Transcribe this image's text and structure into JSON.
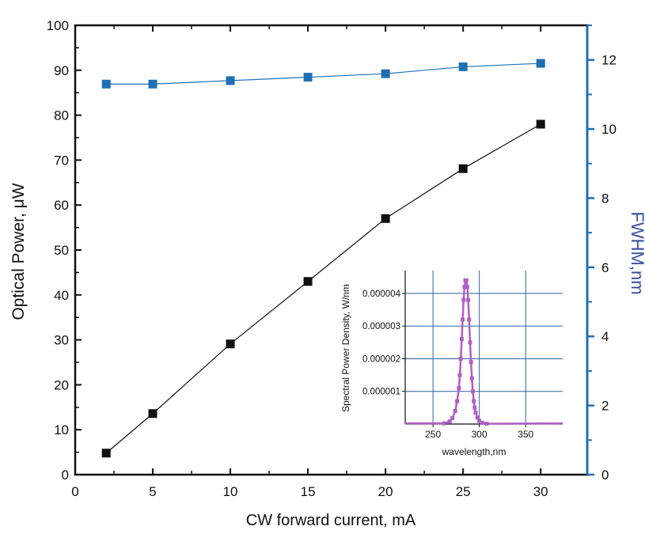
{
  "chart_data": [
    {
      "type": "line",
      "xlabel": "CW forward current, mA",
      "ylabel_left": "Optical Power, μW",
      "ylabel_right": "FWHM,nm",
      "xlim": [
        0,
        33
      ],
      "ylim_left": [
        0,
        100
      ],
      "ylim_right": [
        0,
        13
      ],
      "x_ticks": [
        "0",
        "5",
        "10",
        "15",
        "20",
        "25",
        "30"
      ],
      "y_left_ticks": [
        "0",
        "10",
        "20",
        "30",
        "40",
        "50",
        "60",
        "70",
        "80",
        "90",
        "100"
      ],
      "y_right_ticks": [
        "0",
        "2",
        "4",
        "6",
        "8",
        "10",
        "12"
      ],
      "colors": {
        "power": "#111111",
        "fwhm": "#1f6fb5",
        "right_axis": "#1f6fb5",
        "right_label": "#3a4fa0"
      },
      "series": [
        {
          "axis": "left",
          "x": [
            2,
            5,
            10,
            15,
            20,
            25,
            30
          ],
          "values": [
            4.8,
            13.6,
            29.1,
            43.0,
            57.0,
            68.1,
            78.0
          ]
        },
        {
          "axis": "right",
          "x": [
            2,
            5,
            10,
            15,
            20,
            25,
            30
          ],
          "values": [
            11.3,
            11.3,
            11.4,
            11.5,
            11.6,
            11.8,
            11.9
          ]
        }
      ]
    },
    {
      "type": "line",
      "inset": true,
      "xlabel": "wavelength,nm",
      "ylabel": "Spectral Power Density, W/nm",
      "xlim": [
        220,
        390
      ],
      "ylim": [
        0,
        4.7e-06
      ],
      "x_ticks": [
        "250",
        "300",
        "350"
      ],
      "y_ticks": [
        "0.000001",
        "0.000002",
        "0.000003",
        "0.000004"
      ],
      "grid": true,
      "colors": {
        "spectrum": "#b05fc4",
        "grid": "#2f5fa0"
      },
      "series": [
        {
          "x": [
            262,
            268,
            271,
            274,
            276,
            278,
            279,
            280,
            281,
            282,
            283,
            284,
            285,
            286,
            287,
            288,
            289,
            290,
            291,
            292,
            293,
            294,
            295,
            296,
            298,
            300,
            303,
            308
          ],
          "values": [
            2e-08,
            8e-08,
            1.8e-07,
            4e-07,
            7e-07,
            1.1e-06,
            1.5e-06,
            2e-06,
            2.6e-06,
            3.2e-06,
            3.8e-06,
            4.2e-06,
            4.4e-06,
            4.4e-06,
            4.2e-06,
            3.8e-06,
            3.2e-06,
            2.5e-06,
            1.9e-06,
            1.4e-06,
            1e-06,
            7e-07,
            5e-07,
            3.5e-07,
            2e-07,
            1e-07,
            4e-08,
            1e-08
          ]
        }
      ]
    }
  ]
}
